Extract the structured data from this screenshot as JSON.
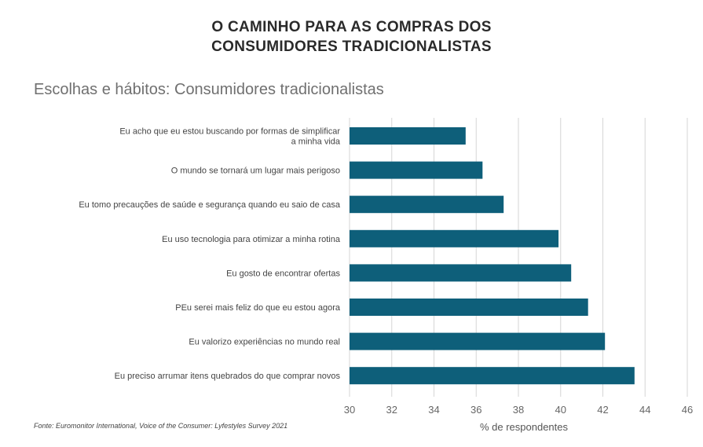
{
  "header": {
    "title_line1": "O CAMINHO PARA AS COMPRAS DOS",
    "title_line2": "CONSUMIDORES TRADICIONALISTAS",
    "subtitle": "Escolhas e hábitos: Consumidores tradicionalistas",
    "source": "Fonte: Euromonitor International, Voice of the Consumer: Lyfestyles Survey 2021"
  },
  "chart_data": {
    "type": "bar",
    "orientation": "horizontal",
    "categories": [
      [
        "Eu acho que eu estou buscando por formas de simplificar",
        "a minha vida"
      ],
      [
        "O mundo se tornará um lugar mais perigoso"
      ],
      [
        "Eu tomo precauções de saúde e segurança quando eu saio de casa"
      ],
      [
        "Eu uso tecnologia para otimizar a minha rotina"
      ],
      [
        "Eu gosto de encontrar ofertas"
      ],
      [
        "PEu serei mais feliz do que eu estou agora"
      ],
      [
        "Eu valorizo experiências no mundo real"
      ],
      [
        "Eu preciso arrumar itens quebrados do que comprar novos"
      ]
    ],
    "values": [
      35.5,
      36.3,
      37.3,
      39.9,
      40.5,
      41.3,
      42.1,
      43.5
    ],
    "xlim": [
      30,
      46
    ],
    "xticks": [
      "30",
      "32",
      "34",
      "36",
      "38",
      "40",
      "42",
      "44",
      "46"
    ],
    "xlabel": "% de respondentes",
    "grid": true,
    "bar_color": "#0e5f7a",
    "grid_color": "#d6d6d6"
  }
}
